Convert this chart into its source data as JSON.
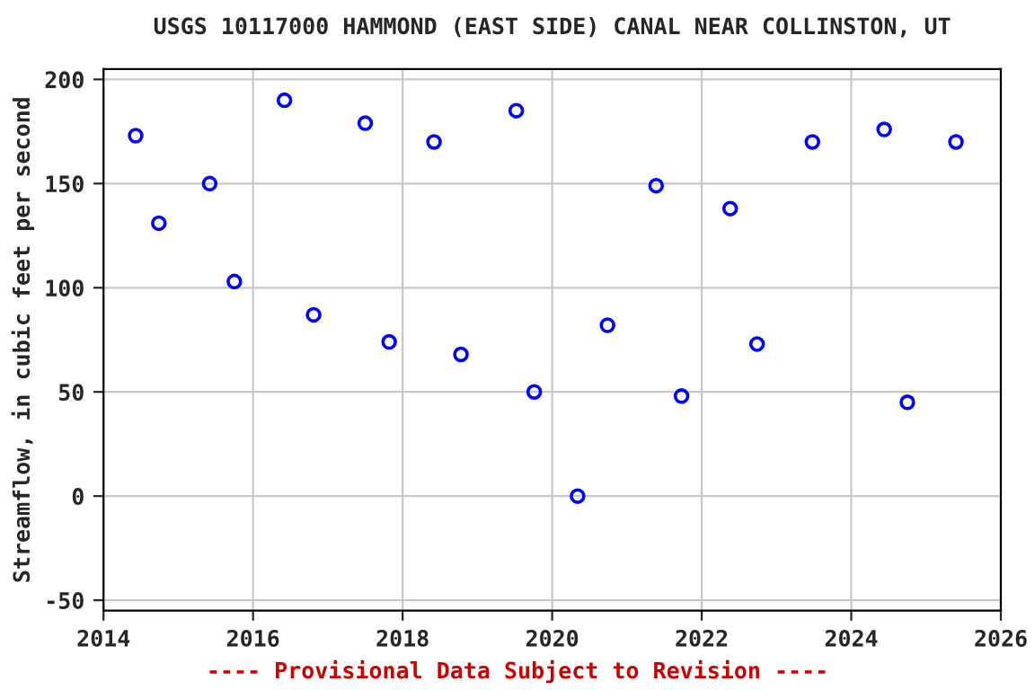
{
  "chart_data": {
    "type": "scatter",
    "title": "USGS 10117000 HAMMOND (EAST SIDE) CANAL NEAR COLLINSTON, UT",
    "ylabel": "Streamflow, in cubic feet per second",
    "annotations": [
      "---- Provisional Data Subject to Revision ----"
    ],
    "x": [
      2014.43,
      2014.74,
      2015.42,
      2015.75,
      2016.42,
      2016.81,
      2017.5,
      2017.82,
      2018.42,
      2018.78,
      2019.52,
      2019.76,
      2020.34,
      2020.74,
      2021.39,
      2021.73,
      2022.38,
      2022.74,
      2023.48,
      2024.44,
      2024.75,
      2025.4
    ],
    "series": [
      {
        "color": "#0000ff",
        "values": [
          173,
          131,
          150,
          103,
          190,
          87,
          179,
          74,
          170,
          68,
          185,
          50,
          0,
          82,
          149,
          48,
          138,
          73,
          170,
          176,
          45,
          170
        ]
      }
    ],
    "xlim": [
      2014,
      2026
    ],
    "xticks": [
      2014,
      2016,
      2018,
      2020,
      2022,
      2024,
      2026
    ],
    "ylim": [
      -55,
      205
    ],
    "yticks": [
      -50,
      0,
      50,
      100,
      150,
      200
    ],
    "grid": true,
    "marker": "circle"
  }
}
